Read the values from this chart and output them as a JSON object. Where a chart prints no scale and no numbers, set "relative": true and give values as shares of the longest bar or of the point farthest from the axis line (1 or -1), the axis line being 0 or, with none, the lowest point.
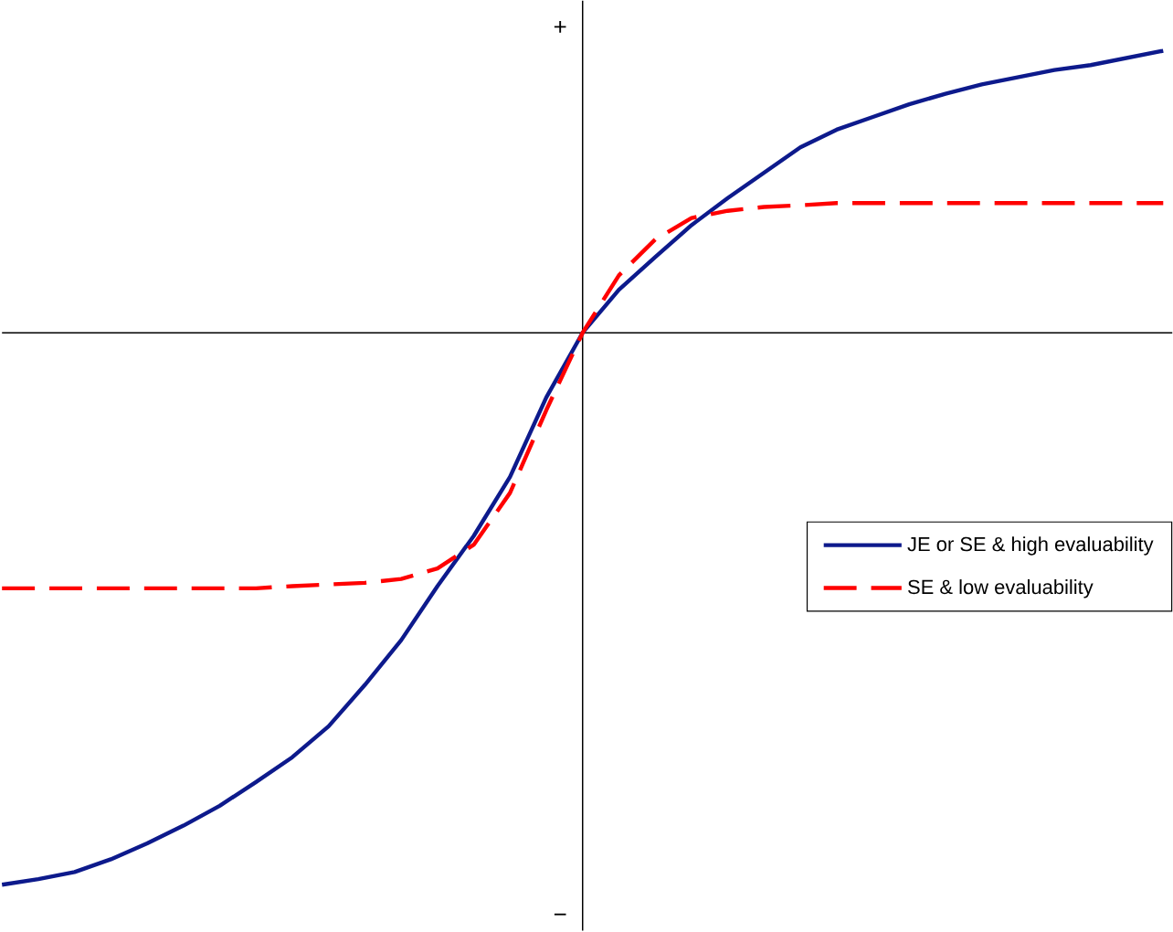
{
  "chart_data": {
    "type": "line",
    "relative": true,
    "legend": "right",
    "categories": [
      null,
      null,
      null,
      null,
      null,
      null,
      null,
      null,
      null,
      null,
      null,
      null,
      null,
      null,
      null,
      null,
      null,
      null,
      null,
      null,
      null,
      null,
      null,
      null,
      null,
      null,
      null,
      null,
      null,
      null,
      null,
      null,
      null
    ],
    "series": [
      {
        "name": "JE or SE & high evaluability",
        "color": "#0d1a8c",
        "line_style": "solid",
        "values": [
          -1,
          -0.99,
          -0.977,
          -0.954,
          -0.925,
          -0.893,
          -0.857,
          -0.814,
          -0.769,
          -0.713,
          -0.638,
          -0.557,
          -0.459,
          -0.368,
          -0.261,
          -0.117,
          0,
          0.078,
          0.137,
          0.195,
          0.244,
          0.29,
          0.336,
          0.368,
          0.391,
          0.414,
          0.433,
          0.45,
          0.463,
          0.476,
          0.485,
          0.498,
          0.511
        ]
      },
      {
        "name": "SE & low evaluability",
        "color": "#ff0000",
        "line_style": "dashed",
        "values": [
          -0.463,
          -0.463,
          -0.463,
          -0.463,
          -0.463,
          -0.463,
          -0.463,
          -0.463,
          -0.459,
          -0.456,
          -0.453,
          -0.446,
          -0.427,
          -0.384,
          -0.29,
          -0.14,
          0,
          0.104,
          0.169,
          0.208,
          0.221,
          0.228,
          0.231,
          0.235,
          0.235,
          0.235,
          0.235,
          0.235,
          0.235,
          0.235,
          0.235,
          0.235,
          0.235
        ]
      }
    ],
    "annotations": [
      "+",
      "−"
    ]
  }
}
